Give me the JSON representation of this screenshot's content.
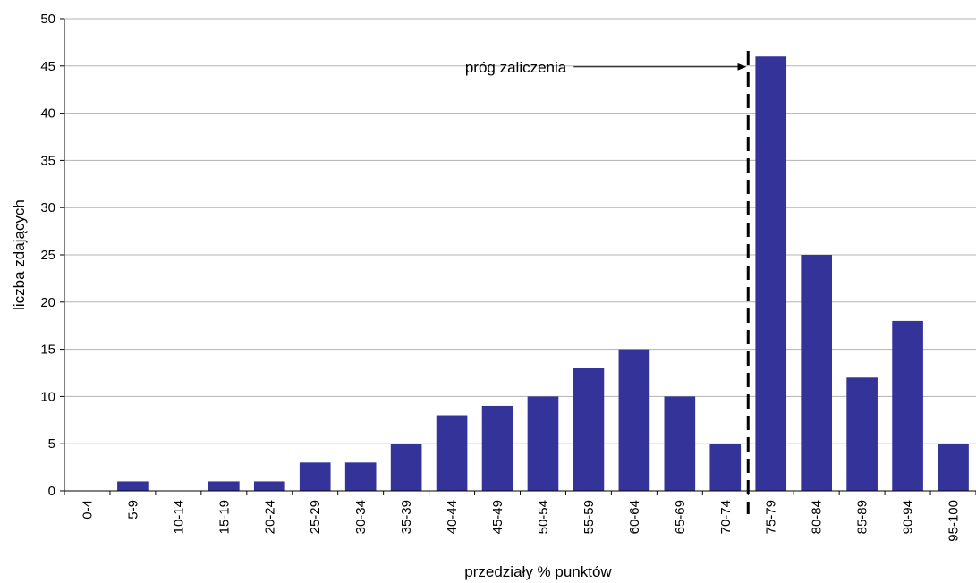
{
  "chart_data": {
    "type": "bar",
    "title": "",
    "xlabel": "przedziały % punktów",
    "ylabel": "liczba zdających",
    "categories": [
      "0-4",
      "5-9",
      "10-14",
      "15-19",
      "20-24",
      "25-29",
      "30-34",
      "35-39",
      "40-44",
      "45-49",
      "50-54",
      "55-59",
      "60-64",
      "65-69",
      "70-74",
      "75-79",
      "80-84",
      "85-89",
      "90-94",
      "95-100"
    ],
    "values": [
      0,
      1,
      0,
      1,
      1,
      3,
      3,
      5,
      8,
      9,
      10,
      13,
      15,
      10,
      5,
      46,
      25,
      12,
      18,
      5
    ],
    "ylim": [
      0,
      50
    ],
    "yticks": [
      0,
      5,
      10,
      15,
      20,
      25,
      30,
      35,
      40,
      45,
      50
    ],
    "grid": true,
    "bar_color": "#333399",
    "threshold": {
      "label": "próg zaliczenia",
      "between_categories": [
        "70-74",
        "75-79"
      ]
    }
  }
}
